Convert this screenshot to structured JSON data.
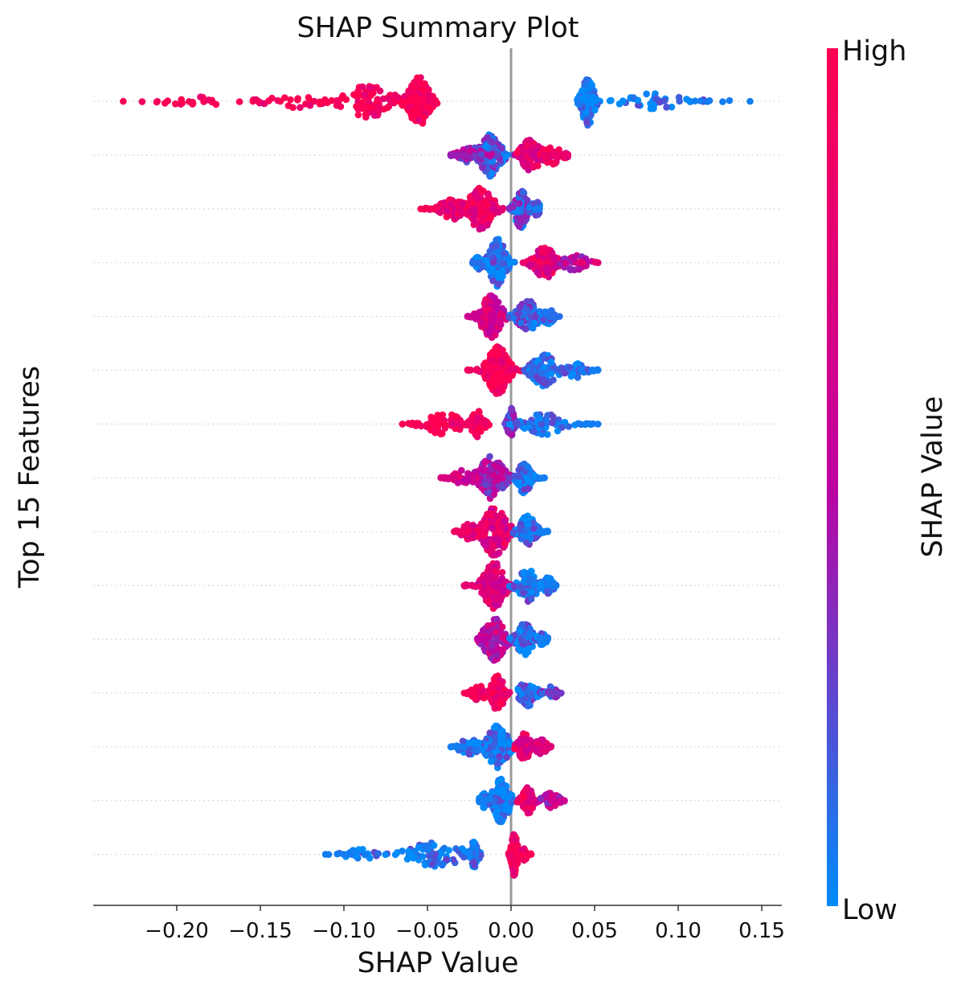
{
  "chart_data": {
    "type": "scatter",
    "subtype": "beeswarm",
    "title": "SHAP Summary Plot",
    "xlabel": "SHAP Value",
    "ylabel": "Top 15 Features",
    "xlim": [
      -0.25,
      0.162
    ],
    "xticks": [
      -0.2,
      -0.15,
      -0.1,
      -0.05,
      0.0,
      0.05,
      0.1,
      0.15
    ],
    "xtick_labels": [
      "−0.20",
      "−0.15",
      "−0.10",
      "−0.05",
      "0.00",
      "0.05",
      "0.10",
      "0.15"
    ],
    "zero_line": 0.0,
    "grid": "horizontal dotted",
    "colorbar": {
      "label": "SHAP Value",
      "high_label": "High",
      "low_label": "Low",
      "high_color": "#ff0051",
      "mid_color": "#c000a0",
      "low_color": "#008bfb",
      "placement": "right"
    },
    "rows": [
      {
        "rank": 1,
        "clusters": [
          {
            "c": -0.055,
            "w": 0.01,
            "d": 20,
            "v": 0.95
          },
          {
            "c": -0.085,
            "w": 0.025,
            "d": 10,
            "v": 0.95
          },
          {
            "c": -0.13,
            "w": 0.03,
            "d": 3,
            "v": 0.95
          },
          {
            "c": -0.19,
            "w": 0.03,
            "d": 2,
            "v": 0.95
          },
          {
            "c": 0.046,
            "w": 0.006,
            "d": 16,
            "v": 0.05
          },
          {
            "c": 0.085,
            "w": 0.035,
            "d": 4,
            "v": 0.05
          }
        ],
        "min": -0.232,
        "max": 0.143,
        "min_v": 0.95,
        "max_v": 0.05
      },
      {
        "rank": 2,
        "clusters": [
          {
            "c": -0.012,
            "w": 0.01,
            "d": 14,
            "v": 0.2
          },
          {
            "c": -0.025,
            "w": 0.012,
            "d": 5,
            "v": 0.4
          },
          {
            "c": 0.012,
            "w": 0.01,
            "d": 10,
            "v": 0.75
          },
          {
            "c": 0.025,
            "w": 0.01,
            "d": 5,
            "v": 0.8
          }
        ],
        "min": -0.036,
        "max": 0.034,
        "min_v": 0.4,
        "max_v": 0.85
      },
      {
        "rank": 3,
        "clusters": [
          {
            "c": -0.018,
            "w": 0.012,
            "d": 14,
            "v": 0.85
          },
          {
            "c": -0.035,
            "w": 0.012,
            "d": 6,
            "v": 0.85
          },
          {
            "c": 0.006,
            "w": 0.006,
            "d": 12,
            "v": 0.2
          },
          {
            "c": 0.015,
            "w": 0.006,
            "d": 4,
            "v": 0.1
          }
        ],
        "min": -0.054,
        "max": 0.017,
        "min_v": 0.95,
        "max_v": 0.05
      },
      {
        "rank": 4,
        "clusters": [
          {
            "c": -0.008,
            "w": 0.008,
            "d": 18,
            "v": 0.05
          },
          {
            "c": -0.018,
            "w": 0.006,
            "d": 4,
            "v": 0.1
          },
          {
            "c": 0.02,
            "w": 0.01,
            "d": 10,
            "v": 0.8
          },
          {
            "c": 0.038,
            "w": 0.012,
            "d": 4,
            "v": 0.55
          }
        ],
        "min": -0.023,
        "max": 0.052,
        "min_v": 0.1,
        "max_v": 0.8
      },
      {
        "rank": 5,
        "clusters": [
          {
            "c": -0.012,
            "w": 0.01,
            "d": 14,
            "v": 0.65
          },
          {
            "c": 0.01,
            "w": 0.01,
            "d": 10,
            "v": 0.2
          },
          {
            "c": 0.022,
            "w": 0.006,
            "d": 4,
            "v": 0.1
          }
        ],
        "min": -0.026,
        "max": 0.029,
        "min_v": 0.6,
        "max_v": 0.1
      },
      {
        "rank": 6,
        "clusters": [
          {
            "c": -0.008,
            "w": 0.01,
            "d": 20,
            "v": 0.95
          },
          {
            "c": 0.02,
            "w": 0.012,
            "d": 10,
            "v": 0.05
          },
          {
            "c": 0.038,
            "w": 0.01,
            "d": 4,
            "v": 0.05
          }
        ],
        "min": -0.026,
        "max": 0.052,
        "min_v": 0.9,
        "max_v": 0.05
      },
      {
        "rank": 7,
        "clusters": [
          {
            "c": -0.02,
            "w": 0.006,
            "d": 8,
            "v": 0.95
          },
          {
            "c": -0.04,
            "w": 0.018,
            "d": 6,
            "v": 0.95
          },
          {
            "c": 0.0,
            "w": 0.003,
            "d": 10,
            "v": 0.25
          },
          {
            "c": 0.02,
            "w": 0.018,
            "d": 6,
            "v": 0.05
          }
        ],
        "min": -0.065,
        "max": 0.052,
        "min_v": 0.95,
        "max_v": 0.05
      },
      {
        "rank": 8,
        "clusters": [
          {
            "c": -0.012,
            "w": 0.012,
            "d": 14,
            "v": 0.45
          },
          {
            "c": -0.03,
            "w": 0.01,
            "d": 4,
            "v": 0.7
          },
          {
            "c": 0.008,
            "w": 0.006,
            "d": 10,
            "v": 0.1
          }
        ],
        "min": -0.042,
        "max": 0.02,
        "min_v": 0.7,
        "max_v": 0.05
      },
      {
        "rank": 9,
        "clusters": [
          {
            "c": -0.01,
            "w": 0.012,
            "d": 16,
            "v": 0.75
          },
          {
            "c": -0.025,
            "w": 0.008,
            "d": 4,
            "v": 0.85
          },
          {
            "c": 0.01,
            "w": 0.008,
            "d": 10,
            "v": 0.1
          }
        ],
        "min": -0.034,
        "max": 0.022,
        "min_v": 0.9,
        "max_v": 0.05
      },
      {
        "rank": 10,
        "clusters": [
          {
            "c": -0.01,
            "w": 0.01,
            "d": 16,
            "v": 0.7
          },
          {
            "c": 0.01,
            "w": 0.01,
            "d": 10,
            "v": 0.1
          },
          {
            "c": 0.022,
            "w": 0.006,
            "d": 4,
            "v": 0.05
          }
        ],
        "min": -0.028,
        "max": 0.027,
        "min_v": 0.8,
        "max_v": 0.05
      },
      {
        "rank": 11,
        "clusters": [
          {
            "c": -0.01,
            "w": 0.01,
            "d": 14,
            "v": 0.55
          },
          {
            "c": 0.008,
            "w": 0.008,
            "d": 10,
            "v": 0.1
          },
          {
            "c": 0.018,
            "w": 0.005,
            "d": 3,
            "v": 0.05
          }
        ],
        "min": -0.02,
        "max": 0.022,
        "min_v": 0.5,
        "max_v": 0.05
      },
      {
        "rank": 12,
        "clusters": [
          {
            "c": -0.008,
            "w": 0.006,
            "d": 12,
            "v": 0.9
          },
          {
            "c": -0.02,
            "w": 0.008,
            "d": 4,
            "v": 0.9
          },
          {
            "c": 0.01,
            "w": 0.008,
            "d": 8,
            "v": 0.15
          },
          {
            "c": 0.024,
            "w": 0.006,
            "d": 3,
            "v": 0.2
          }
        ],
        "min": -0.028,
        "max": 0.03,
        "min_v": 0.95,
        "max_v": 0.3
      },
      {
        "rank": 13,
        "clusters": [
          {
            "c": -0.008,
            "w": 0.01,
            "d": 14,
            "v": 0.05
          },
          {
            "c": -0.025,
            "w": 0.01,
            "d": 4,
            "v": 0.05
          },
          {
            "c": 0.008,
            "w": 0.006,
            "d": 8,
            "v": 0.8
          },
          {
            "c": 0.018,
            "w": 0.006,
            "d": 4,
            "v": 0.7
          }
        ],
        "min": -0.036,
        "max": 0.024,
        "min_v": 0.05,
        "max_v": 0.75
      },
      {
        "rank": 14,
        "clusters": [
          {
            "c": -0.006,
            "w": 0.008,
            "d": 14,
            "v": 0.05
          },
          {
            "c": -0.016,
            "w": 0.005,
            "d": 4,
            "v": 0.05
          },
          {
            "c": 0.01,
            "w": 0.006,
            "d": 8,
            "v": 0.85
          },
          {
            "c": 0.024,
            "w": 0.008,
            "d": 4,
            "v": 0.55
          }
        ],
        "min": -0.019,
        "max": 0.032,
        "min_v": 0.05,
        "max_v": 0.6
      },
      {
        "rank": 15,
        "clusters": [
          {
            "c": -0.022,
            "w": 0.004,
            "d": 8,
            "v": 0.05
          },
          {
            "c": -0.045,
            "w": 0.025,
            "d": 8,
            "v": 0.05
          },
          {
            "c": -0.09,
            "w": 0.015,
            "d": 2,
            "v": 0.05
          },
          {
            "c": 0.002,
            "w": 0.003,
            "d": 14,
            "v": 0.95
          },
          {
            "c": 0.008,
            "w": 0.003,
            "d": 3,
            "v": 0.95
          }
        ],
        "min": -0.111,
        "max": 0.012,
        "min_v": 0.05,
        "max_v": 0.95
      }
    ]
  }
}
